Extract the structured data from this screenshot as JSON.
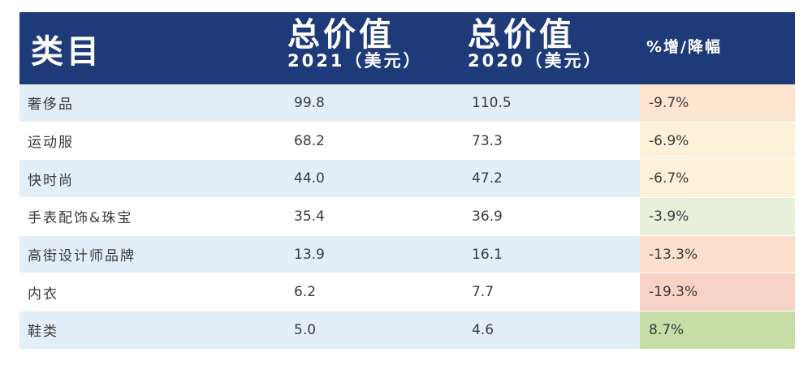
{
  "chart_data": {
    "type": "table",
    "header": {
      "category": "类目",
      "col2021_main": "总价值",
      "col2021_sub": "2021（美元）",
      "col2020_main": "总价值",
      "col2020_sub": "2020（美元）",
      "pct": "%增/降幅"
    },
    "rows": [
      {
        "category": "奢侈品",
        "v2021": "99.8",
        "v2020": "110.5",
        "pct": "-9.7%",
        "pct_color": "#fde5cf"
      },
      {
        "category": "运动服",
        "v2021": "68.2",
        "v2020": "73.3",
        "pct": "-6.9%",
        "pct_color": "#fdf1d9"
      },
      {
        "category": "快时尚",
        "v2021": "44.0",
        "v2020": "47.2",
        "pct": "-6.7%",
        "pct_color": "#fdf1d9"
      },
      {
        "category": "手表配饰&珠宝",
        "v2021": "35.4",
        "v2020": "36.9",
        "pct": "-3.9%",
        "pct_color": "#e8efdb"
      },
      {
        "category": "高街设计师品牌",
        "v2021": "13.9",
        "v2020": "16.1",
        "pct": "-13.3%",
        "pct_color": "#fce0cd"
      },
      {
        "category": "内衣",
        "v2021": "6.2",
        "v2020": "7.7",
        "pct": "-19.3%",
        "pct_color": "#f8d2c5"
      },
      {
        "category": "鞋类",
        "v2021": "5.0",
        "v2020": "4.6",
        "pct": "8.7%",
        "pct_color": "#c6dea6"
      }
    ]
  },
  "colors": {
    "header_bg": "#1e3a78",
    "row_stripe": "#e2eef8"
  }
}
